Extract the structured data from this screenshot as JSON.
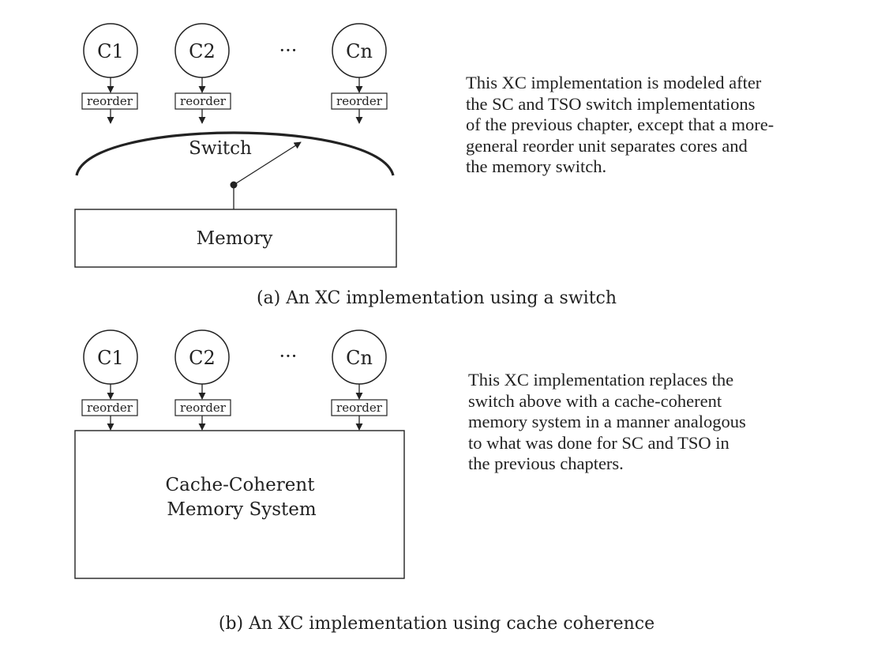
{
  "panel_a": {
    "cores": [
      "C1",
      "C2",
      "Cn"
    ],
    "ellipsis": "···",
    "reorder_label": "reorder",
    "switch_label": "Switch",
    "memory_label": "Memory",
    "description": [
      "This XC implementation is modeled after",
      "the SC and TSO switch implementations",
      "of the previous chapter, except that a more-",
      "general reorder unit separates cores and",
      "the memory switch."
    ],
    "caption": "(a) An XC implementation using a switch"
  },
  "panel_b": {
    "cores": [
      "C1",
      "C2",
      "Cn"
    ],
    "ellipsis": "···",
    "reorder_label": "reorder",
    "memory_label_lines": [
      "Cache-Coherent",
      "Memory System"
    ],
    "description": [
      "This XC implementation replaces the",
      "switch above with a cache-coherent",
      "memory system in a manner analogous",
      "to what was done for SC and TSO in",
      "the previous chapters."
    ],
    "caption": "(b) An XC implementation using cache coherence"
  }
}
